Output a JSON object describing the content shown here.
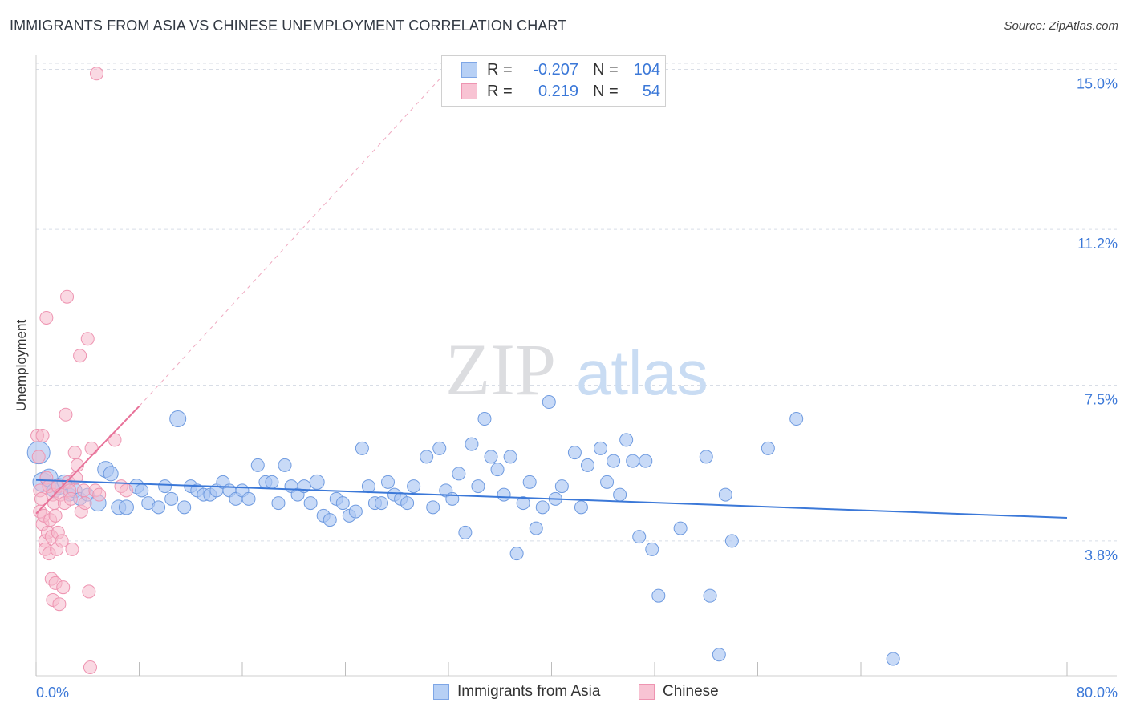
{
  "title": "IMMIGRANTS FROM ASIA VS CHINESE UNEMPLOYMENT CORRELATION CHART",
  "source": "Source: ZipAtlas.com",
  "watermark": {
    "zip": "ZIP",
    "atlas": "atlas"
  },
  "legend": {
    "rows": [
      {
        "r_label": "R =",
        "r_value": "-0.207",
        "n_label": "N =",
        "n_value": "104",
        "fill": "#b7d0f5",
        "stroke": "#7ea6e6"
      },
      {
        "r_label": "R =",
        "r_value": "0.219",
        "n_label": "N =",
        "n_value": "54",
        "fill": "#f8c3d3",
        "stroke": "#ee94b1"
      }
    ]
  },
  "chart_data": {
    "type": "scatter",
    "ylabel": "Unemployment",
    "xlim": [
      0,
      80
    ],
    "ylim": [
      0.6,
      15.6
    ],
    "x_tick_labels": [
      "0.0%",
      "80.0%"
    ],
    "y_ticks": [
      {
        "value": 3.8,
        "label": "3.8%"
      },
      {
        "value": 7.5,
        "label": "7.5%"
      },
      {
        "value": 11.2,
        "label": "11.2%"
      },
      {
        "value": 15.0,
        "label": "15.0%"
      }
    ],
    "grid": "dashed-horizontal",
    "colors": {
      "blue": "#3b78d8",
      "blue_fill": "#aac6f2",
      "pink": "#e8739a",
      "pink_fill": "#f6b9cc"
    },
    "series": [
      {
        "name": "Immigrants from Asia",
        "color": "#3b78d8",
        "trend": {
          "x": [
            0,
            80
          ],
          "y": [
            5.25,
            4.35
          ]
        },
        "points": [
          [
            0.2,
            5.9,
            14
          ],
          [
            0.5,
            5.2,
            12
          ],
          [
            1.0,
            5.3,
            11
          ],
          [
            1.4,
            5.0,
            9
          ],
          [
            1.8,
            5.1,
            10
          ],
          [
            2.2,
            5.2,
            9
          ],
          [
            2.6,
            4.9,
            8
          ],
          [
            3.0,
            5.0,
            9
          ],
          [
            3.4,
            4.8,
            8
          ],
          [
            4.0,
            4.9,
            8
          ],
          [
            4.8,
            4.7,
            10
          ],
          [
            5.4,
            5.5,
            10
          ],
          [
            5.8,
            5.4,
            9
          ],
          [
            6.4,
            4.6,
            9
          ],
          [
            7.0,
            4.6,
            9
          ],
          [
            7.8,
            5.1,
            9
          ],
          [
            8.2,
            5.0,
            8
          ],
          [
            8.7,
            4.7,
            8
          ],
          [
            9.5,
            4.6,
            8
          ],
          [
            10.0,
            5.1,
            8
          ],
          [
            10.5,
            4.8,
            8
          ],
          [
            11.0,
            6.7,
            10
          ],
          [
            11.5,
            4.6,
            8
          ],
          [
            12.0,
            5.1,
            8
          ],
          [
            12.5,
            5.0,
            8
          ],
          [
            13.0,
            4.9,
            8
          ],
          [
            13.5,
            4.9,
            8
          ],
          [
            14.0,
            5.0,
            8
          ],
          [
            14.5,
            5.2,
            8
          ],
          [
            15.0,
            5.0,
            8
          ],
          [
            15.5,
            4.8,
            8
          ],
          [
            16.0,
            5.0,
            8
          ],
          [
            16.5,
            4.8,
            8
          ],
          [
            17.2,
            5.6,
            8
          ],
          [
            17.8,
            5.2,
            8
          ],
          [
            18.3,
            5.2,
            8
          ],
          [
            18.8,
            4.7,
            8
          ],
          [
            19.3,
            5.6,
            8
          ],
          [
            19.8,
            5.1,
            8
          ],
          [
            20.3,
            4.9,
            8
          ],
          [
            20.8,
            5.1,
            8
          ],
          [
            21.3,
            4.7,
            8
          ],
          [
            21.8,
            5.2,
            9
          ],
          [
            22.3,
            4.4,
            8
          ],
          [
            22.8,
            4.3,
            8
          ],
          [
            23.3,
            4.8,
            8
          ],
          [
            23.8,
            4.7,
            8
          ],
          [
            24.3,
            4.4,
            8
          ],
          [
            24.8,
            4.5,
            8
          ],
          [
            25.3,
            6.0,
            8
          ],
          [
            25.8,
            5.1,
            8
          ],
          [
            26.3,
            4.7,
            8
          ],
          [
            26.8,
            4.7,
            8
          ],
          [
            27.3,
            5.2,
            8
          ],
          [
            27.8,
            4.9,
            8
          ],
          [
            28.3,
            4.8,
            8
          ],
          [
            28.8,
            4.7,
            8
          ],
          [
            29.3,
            5.1,
            8
          ],
          [
            30.3,
            5.8,
            8
          ],
          [
            30.8,
            4.6,
            8
          ],
          [
            31.3,
            6.0,
            8
          ],
          [
            31.8,
            5.0,
            8
          ],
          [
            32.3,
            4.8,
            8
          ],
          [
            32.8,
            5.4,
            8
          ],
          [
            33.3,
            4.0,
            8
          ],
          [
            33.8,
            6.1,
            8
          ],
          [
            34.3,
            5.1,
            8
          ],
          [
            34.8,
            6.7,
            8
          ],
          [
            35.3,
            5.8,
            8
          ],
          [
            35.8,
            5.5,
            8
          ],
          [
            36.3,
            4.9,
            8
          ],
          [
            36.8,
            5.8,
            8
          ],
          [
            37.3,
            3.5,
            8
          ],
          [
            37.8,
            4.7,
            8
          ],
          [
            38.3,
            5.2,
            8
          ],
          [
            38.8,
            4.1,
            8
          ],
          [
            39.3,
            4.6,
            8
          ],
          [
            39.8,
            7.1,
            8
          ],
          [
            40.3,
            4.8,
            8
          ],
          [
            40.8,
            5.1,
            8
          ],
          [
            41.8,
            5.9,
            8
          ],
          [
            42.3,
            4.6,
            8
          ],
          [
            42.8,
            5.6,
            8
          ],
          [
            43.8,
            6.0,
            8
          ],
          [
            44.3,
            5.2,
            8
          ],
          [
            44.8,
            5.7,
            8
          ],
          [
            45.3,
            4.9,
            8
          ],
          [
            45.8,
            6.2,
            8
          ],
          [
            46.3,
            5.7,
            8
          ],
          [
            46.8,
            3.9,
            8
          ],
          [
            47.3,
            5.7,
            8
          ],
          [
            47.8,
            3.6,
            8
          ],
          [
            48.3,
            2.5,
            8
          ],
          [
            50.0,
            4.1,
            8
          ],
          [
            52.0,
            5.8,
            8
          ],
          [
            52.3,
            2.5,
            8
          ],
          [
            53.0,
            1.1,
            8
          ],
          [
            53.5,
            4.9,
            8
          ],
          [
            54.0,
            3.8,
            8
          ],
          [
            56.8,
            6.0,
            8
          ],
          [
            59.0,
            6.7,
            8
          ],
          [
            66.5,
            1.0,
            8
          ]
        ]
      },
      {
        "name": "Chinese",
        "color": "#e8739a",
        "trend": {
          "x": [
            0,
            8
          ],
          "y": [
            4.45,
            7.0
          ]
        },
        "trend_dashed": {
          "x": [
            8,
            32
          ],
          "y": [
            7.0,
            15.0
          ]
        },
        "points": [
          [
            0.1,
            6.3,
            8
          ],
          [
            0.2,
            5.8,
            8
          ],
          [
            0.3,
            5.0,
            8
          ],
          [
            0.3,
            4.5,
            8
          ],
          [
            0.4,
            4.8,
            8
          ],
          [
            0.5,
            4.2,
            8
          ],
          [
            0.5,
            6.3,
            8
          ],
          [
            0.6,
            4.4,
            8
          ],
          [
            0.7,
            3.8,
            8
          ],
          [
            0.7,
            3.6,
            8
          ],
          [
            0.8,
            5.3,
            8
          ],
          [
            0.8,
            9.1,
            8
          ],
          [
            0.9,
            4.0,
            8
          ],
          [
            1.0,
            5.1,
            8
          ],
          [
            1.0,
            3.5,
            8
          ],
          [
            1.1,
            4.3,
            8
          ],
          [
            1.2,
            3.9,
            8
          ],
          [
            1.2,
            2.9,
            8
          ],
          [
            1.3,
            4.9,
            8
          ],
          [
            1.3,
            2.4,
            8
          ],
          [
            1.4,
            4.7,
            8
          ],
          [
            1.5,
            2.8,
            8
          ],
          [
            1.5,
            4.4,
            8
          ],
          [
            1.6,
            3.6,
            8
          ],
          [
            1.7,
            4.0,
            8
          ],
          [
            1.7,
            5.1,
            8
          ],
          [
            1.8,
            2.3,
            8
          ],
          [
            1.9,
            4.9,
            8
          ],
          [
            2.0,
            3.8,
            8
          ],
          [
            2.1,
            2.7,
            8
          ],
          [
            2.2,
            4.7,
            8
          ],
          [
            2.3,
            6.8,
            8
          ],
          [
            2.4,
            9.6,
            8
          ],
          [
            2.5,
            5.2,
            8
          ],
          [
            2.6,
            5.0,
            8
          ],
          [
            2.7,
            4.8,
            8
          ],
          [
            2.8,
            3.6,
            8
          ],
          [
            3.0,
            5.9,
            8
          ],
          [
            3.1,
            5.3,
            8
          ],
          [
            3.2,
            5.6,
            8
          ],
          [
            3.4,
            8.2,
            8
          ],
          [
            3.5,
            4.5,
            8
          ],
          [
            3.7,
            5.0,
            8
          ],
          [
            3.8,
            4.7,
            8
          ],
          [
            4.0,
            8.6,
            8
          ],
          [
            4.1,
            2.6,
            8
          ],
          [
            4.3,
            6.0,
            8
          ],
          [
            4.6,
            5.0,
            8
          ],
          [
            4.9,
            4.9,
            8
          ],
          [
            4.2,
            0.8,
            8
          ],
          [
            4.7,
            14.9,
            8
          ],
          [
            6.1,
            6.2,
            8
          ],
          [
            6.6,
            5.1,
            8
          ],
          [
            7.0,
            5.0,
            8
          ]
        ]
      }
    ]
  }
}
